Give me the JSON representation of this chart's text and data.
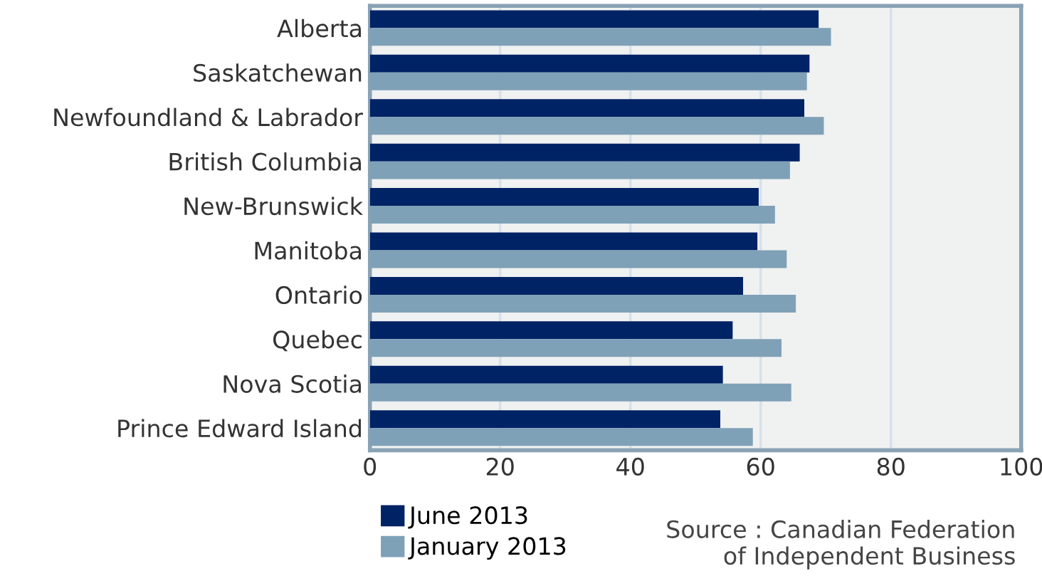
{
  "chart_data": {
    "type": "bar",
    "orientation": "horizontal",
    "categories": [
      "Alberta",
      "Saskatchewan",
      "Newfoundland & Labrador",
      "British Columbia",
      "New-Brunswick",
      "Manitoba",
      "Ontario",
      "Quebec",
      "Nova Scotia",
      "Prince Edward Island"
    ],
    "series": [
      {
        "name": "June 2013",
        "color": "#002366",
        "values": [
          68.9,
          67.5,
          66.7,
          66.0,
          59.7,
          59.5,
          57.3,
          55.7,
          54.2,
          53.8
        ]
      },
      {
        "name": "January 2013",
        "color": "#7fa1b8",
        "values": [
          70.8,
          67.1,
          69.7,
          64.5,
          62.2,
          64.0,
          65.4,
          63.2,
          64.7,
          58.8
        ]
      }
    ],
    "xlim": [
      0,
      100
    ],
    "xticks": [
      0,
      20,
      40,
      60,
      80,
      100
    ],
    "grid": "x",
    "legend": "bottom left",
    "annotations": [
      "Source : Canadian Federation\nof Independent Business"
    ]
  }
}
